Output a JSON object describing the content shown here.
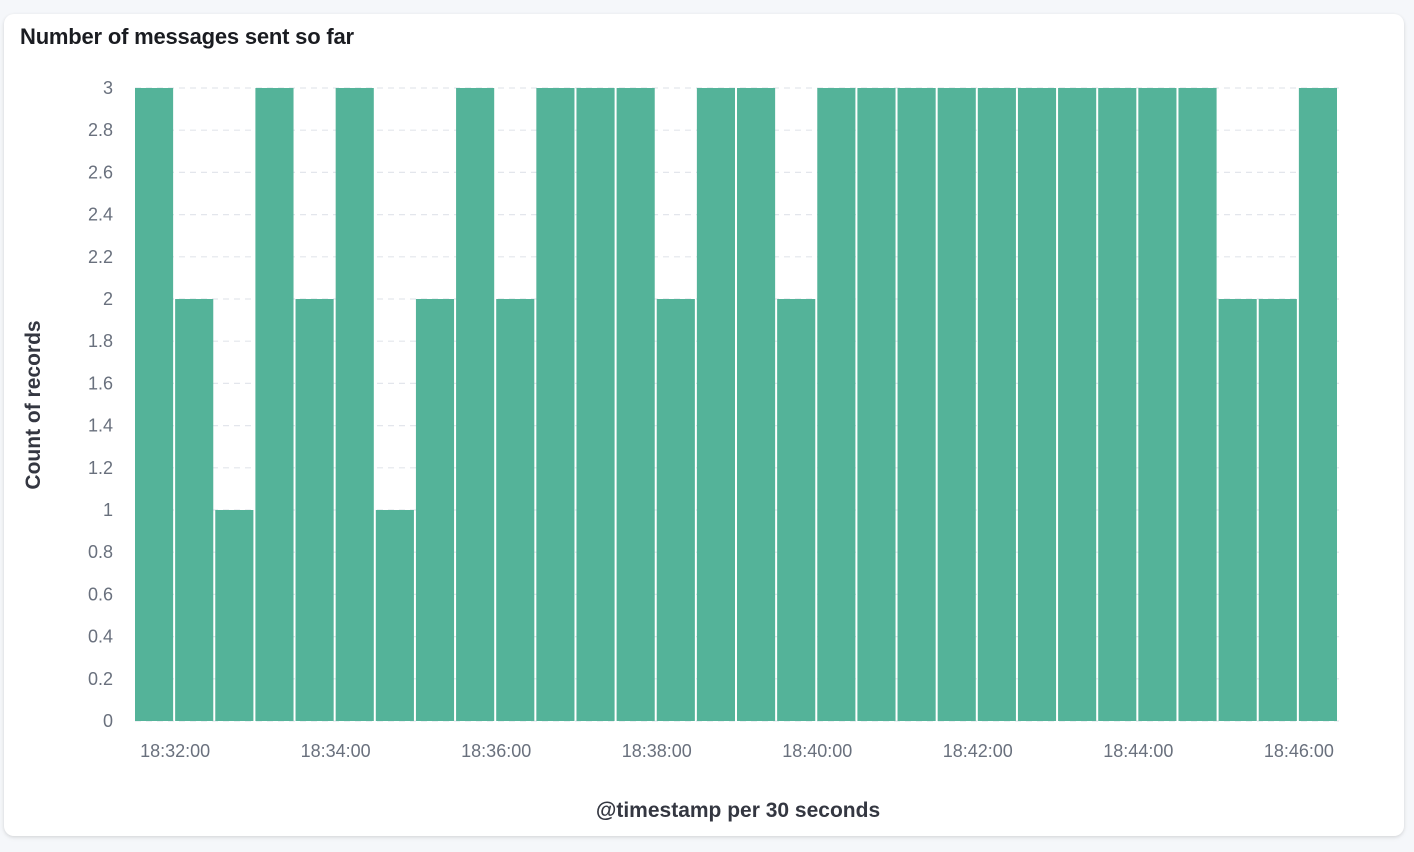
{
  "panel": {
    "title": "Number of messages sent so far"
  },
  "chart_data": {
    "type": "bar",
    "title": "Number of messages sent so far",
    "xlabel": "@timestamp per 30 seconds",
    "ylabel": "Count of records",
    "ylim": [
      0,
      3
    ],
    "y_ticks": [
      "0",
      "0.2",
      "0.4",
      "0.6",
      "0.8",
      "1",
      "1.2",
      "1.4",
      "1.6",
      "1.8",
      "2",
      "2.2",
      "2.4",
      "2.6",
      "2.8",
      "3"
    ],
    "x_ticks": [
      "18:32:00",
      "18:34:00",
      "18:36:00",
      "18:38:00",
      "18:40:00",
      "18:42:00",
      "18:44:00",
      "18:46:00"
    ],
    "categories": [
      "18:31:30",
      "18:32:00",
      "18:32:30",
      "18:33:00",
      "18:33:30",
      "18:34:00",
      "18:34:30",
      "18:35:00",
      "18:35:30",
      "18:36:00",
      "18:36:30",
      "18:37:00",
      "18:37:30",
      "18:38:00",
      "18:38:30",
      "18:39:00",
      "18:39:30",
      "18:40:00",
      "18:40:30",
      "18:41:00",
      "18:41:30",
      "18:42:00",
      "18:42:30",
      "18:43:00",
      "18:43:30",
      "18:44:00",
      "18:44:30",
      "18:45:00",
      "18:45:30",
      "18:46:00"
    ],
    "values": [
      3,
      2,
      1,
      3,
      2,
      3,
      1,
      2,
      3,
      2,
      3,
      3,
      3,
      2,
      3,
      3,
      2,
      3,
      3,
      3,
      3,
      3,
      3,
      3,
      3,
      3,
      3,
      2,
      2,
      3
    ],
    "bar_color": "#54b399",
    "grid": "horizontal dashed",
    "legend": "none"
  }
}
